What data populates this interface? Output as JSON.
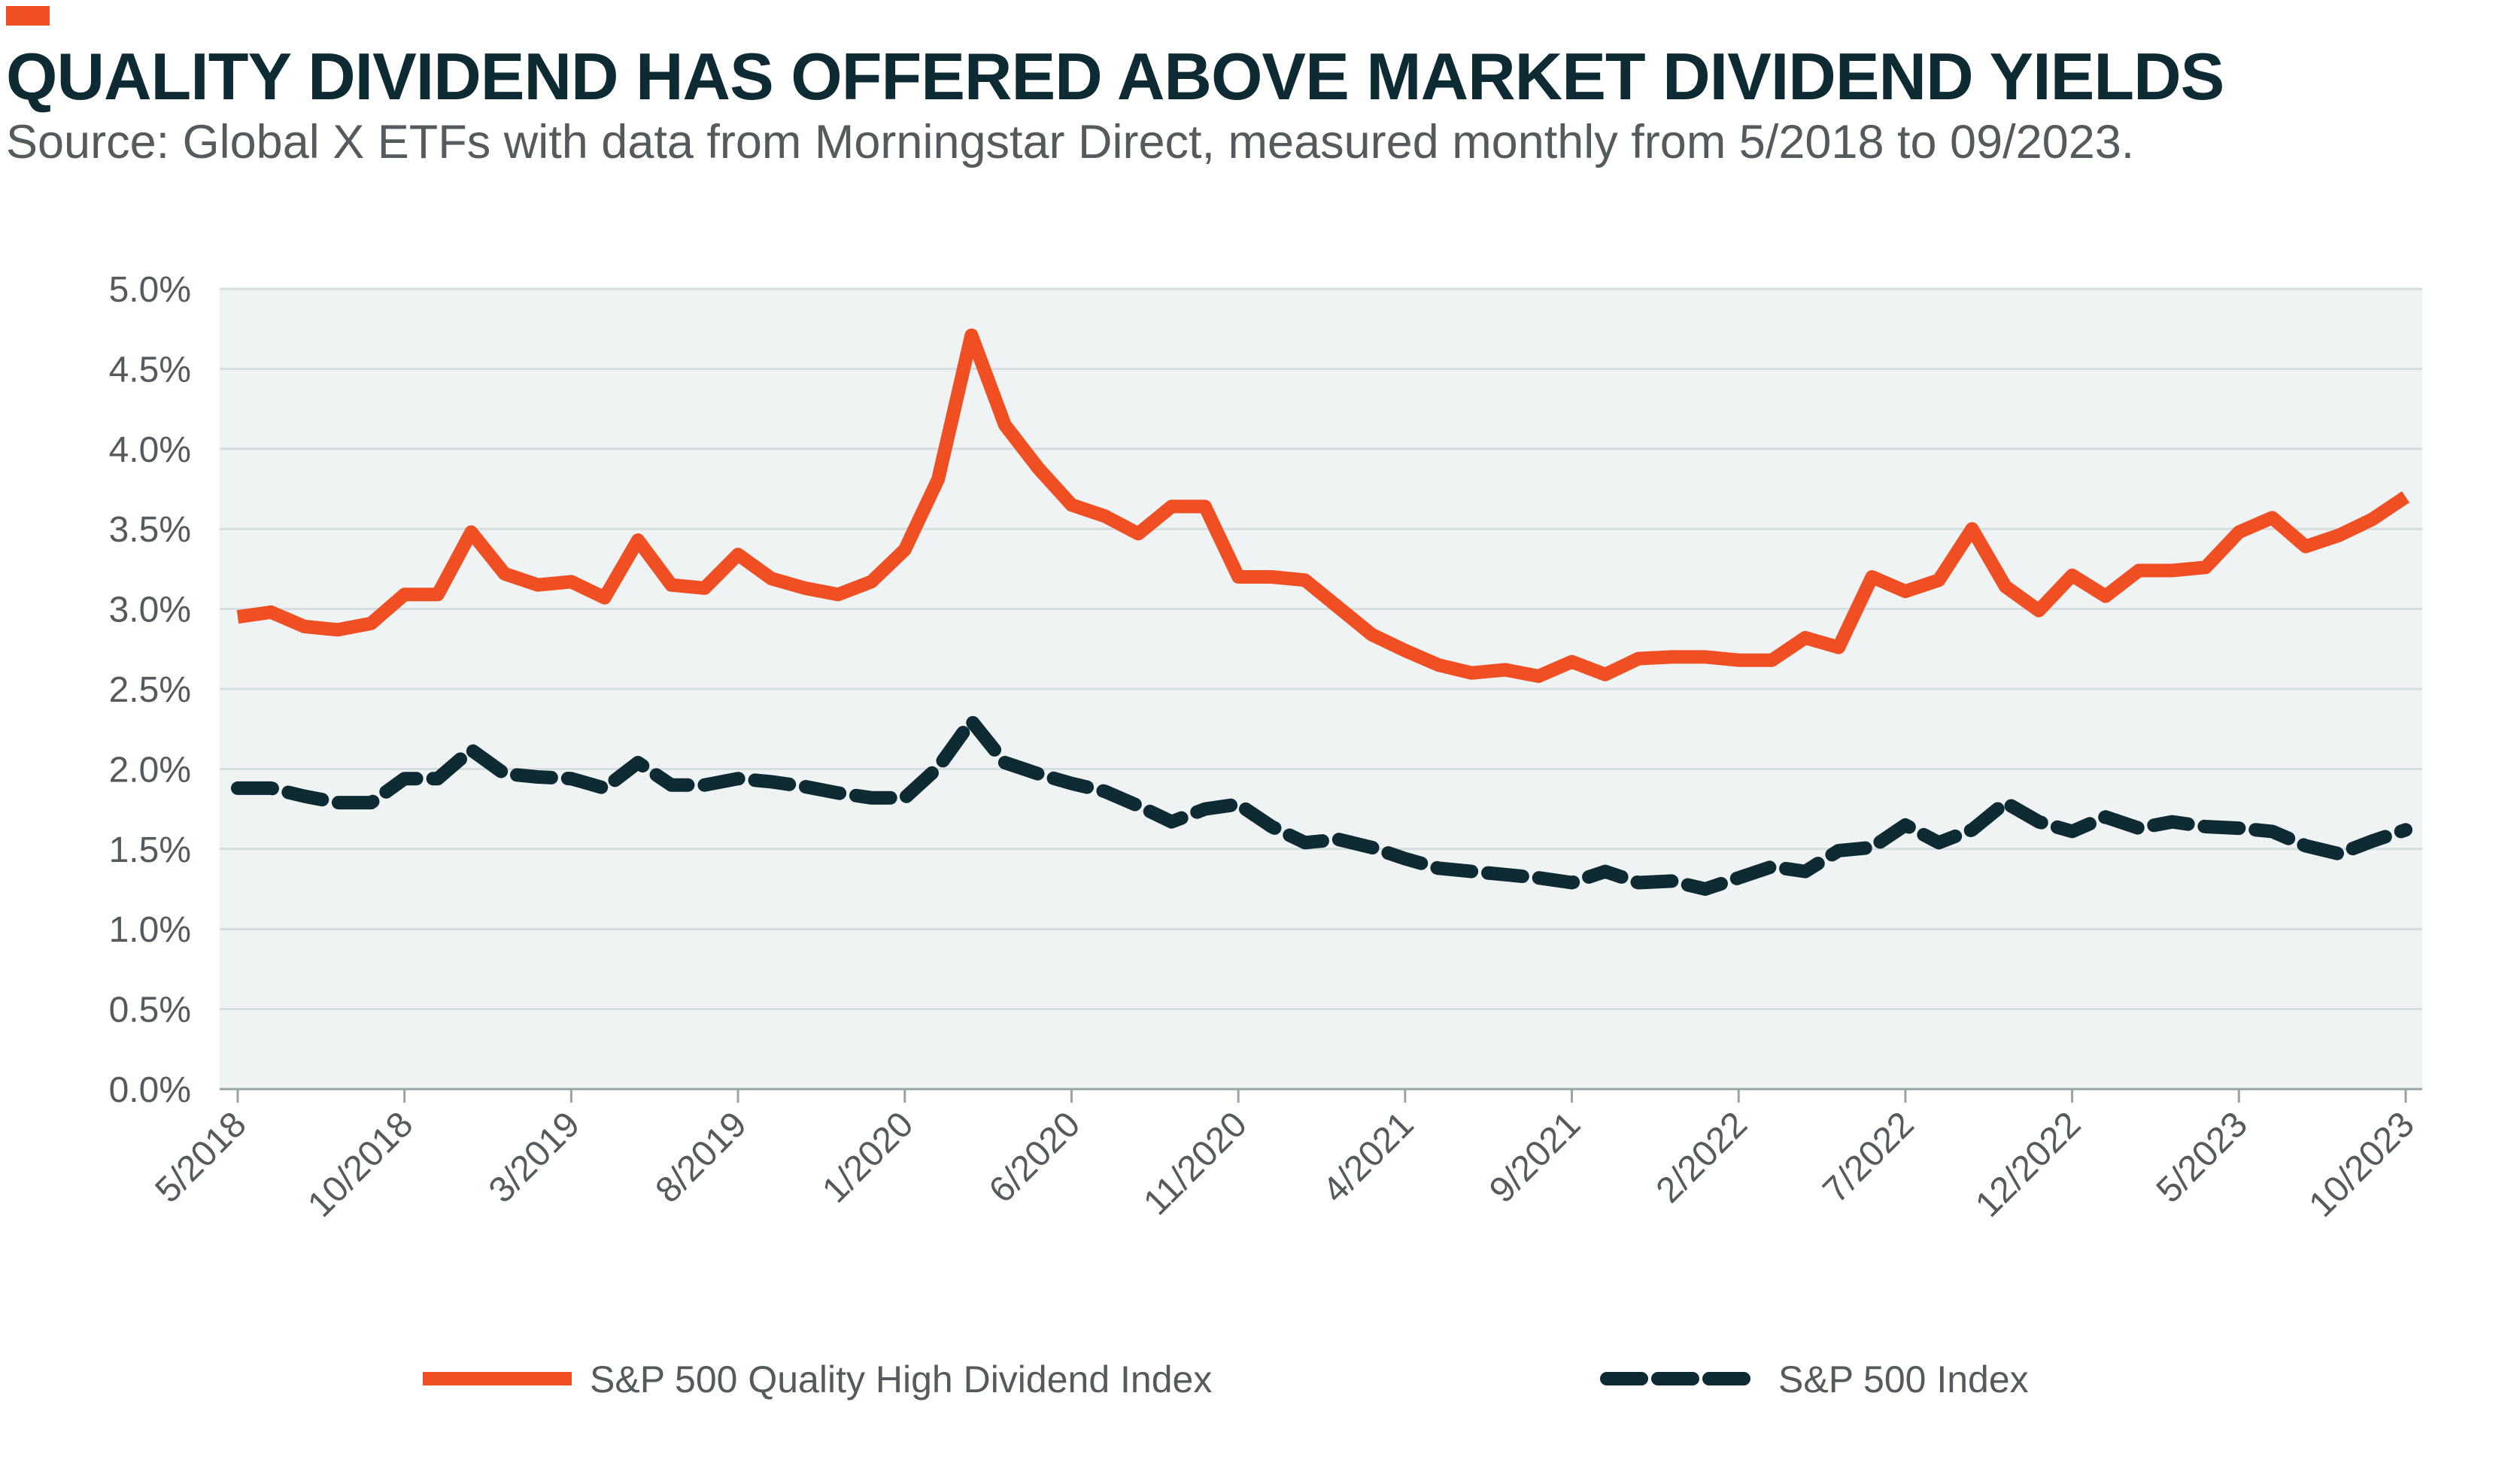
{
  "header": {
    "title": "QUALITY DIVIDEND HAS OFFERED ABOVE MARKET DIVIDEND YIELDS",
    "subtitle": "Source: Global X ETFs with data from Morningstar Direct, measured monthly from 5/2018 to 09/2023."
  },
  "colors": {
    "accent": "#f04e23",
    "dark": "#0e2a33",
    "plot_background": "#eff3f4",
    "gridline": "#d6dddf",
    "text": "#555a5c"
  },
  "chart_data": {
    "type": "line",
    "title": "",
    "xlabel": "",
    "ylabel": "",
    "ylim": [
      0,
      5.0
    ],
    "y_ticks": [
      "5.0%",
      "4.5%",
      "4.0%",
      "3.5%",
      "3.0%",
      "2.5%",
      "2.0%",
      "1.5%",
      "1.0%",
      "0.5%",
      "0.0%"
    ],
    "x_ticks": [
      "5/2018",
      "10/2018",
      "3/2019",
      "8/2019",
      "1/2020",
      "6/2020",
      "11/2020",
      "4/2021",
      "9/2021",
      "2/2022",
      "7/2022",
      "12/2022",
      "5/2023",
      "10/2023"
    ],
    "grid": true,
    "legend_position": "bottom",
    "x": [
      "5/2018",
      "6/2018",
      "7/2018",
      "8/2018",
      "9/2018",
      "10/2018",
      "11/2018",
      "12/2018",
      "1/2019",
      "2/2019",
      "3/2019",
      "4/2019",
      "5/2019",
      "6/2019",
      "7/2019",
      "8/2019",
      "9/2019",
      "10/2019",
      "11/2019",
      "12/2019",
      "1/2020",
      "2/2020",
      "3/2020",
      "4/2020",
      "5/2020",
      "6/2020",
      "7/2020",
      "8/2020",
      "9/2020",
      "10/2020",
      "11/2020",
      "12/2020",
      "1/2021",
      "2/2021",
      "3/2021",
      "4/2021",
      "5/2021",
      "6/2021",
      "7/2021",
      "8/2021",
      "9/2021",
      "10/2021",
      "11/2021",
      "12/2021",
      "1/2022",
      "2/2022",
      "3/2022",
      "4/2022",
      "5/2022",
      "6/2022",
      "7/2022",
      "8/2022",
      "9/2022",
      "10/2022",
      "11/2022",
      "12/2022",
      "1/2023",
      "2/2023",
      "3/2023",
      "4/2023",
      "5/2023",
      "6/2023",
      "7/2023",
      "8/2023",
      "9/2023",
      "10/2023"
    ],
    "series": [
      {
        "name": "S&P 500 Quality High Dividend Index",
        "color": "#f04e23",
        "style": "solid",
        "values": [
          2.95,
          2.98,
          2.89,
          2.87,
          2.91,
          3.09,
          3.09,
          3.48,
          3.22,
          3.15,
          3.17,
          3.07,
          3.43,
          3.15,
          3.13,
          3.34,
          3.19,
          3.13,
          3.09,
          3.17,
          3.37,
          3.81,
          4.71,
          4.15,
          3.88,
          3.65,
          3.58,
          3.47,
          3.64,
          3.64,
          3.2,
          3.2,
          3.18,
          3.01,
          2.84,
          2.74,
          2.65,
          2.6,
          2.62,
          2.58,
          2.67,
          2.59,
          2.69,
          2.7,
          2.7,
          2.68,
          2.68,
          2.82,
          2.76,
          3.2,
          3.11,
          3.18,
          3.5,
          3.14,
          2.99,
          3.21,
          3.08,
          3.24,
          3.24,
          3.26,
          3.48,
          3.57,
          3.39,
          3.46,
          3.56,
          3.7
        ]
      },
      {
        "name": "S&P 500 Index",
        "color": "#0e2a33",
        "style": "dashed",
        "values": [
          1.88,
          1.88,
          1.83,
          1.79,
          1.79,
          1.94,
          1.94,
          2.12,
          1.97,
          1.95,
          1.94,
          1.88,
          2.04,
          1.9,
          1.9,
          1.94,
          1.92,
          1.89,
          1.85,
          1.82,
          1.82,
          2.01,
          2.3,
          2.04,
          1.97,
          1.91,
          1.86,
          1.77,
          1.67,
          1.75,
          1.78,
          1.64,
          1.54,
          1.56,
          1.51,
          1.44,
          1.38,
          1.36,
          1.34,
          1.32,
          1.29,
          1.36,
          1.29,
          1.3,
          1.25,
          1.32,
          1.39,
          1.36,
          1.49,
          1.51,
          1.65,
          1.54,
          1.62,
          1.79,
          1.67,
          1.61,
          1.7,
          1.63,
          1.67,
          1.64,
          1.63,
          1.61,
          1.52,
          1.47,
          1.55,
          1.62
        ]
      }
    ]
  }
}
